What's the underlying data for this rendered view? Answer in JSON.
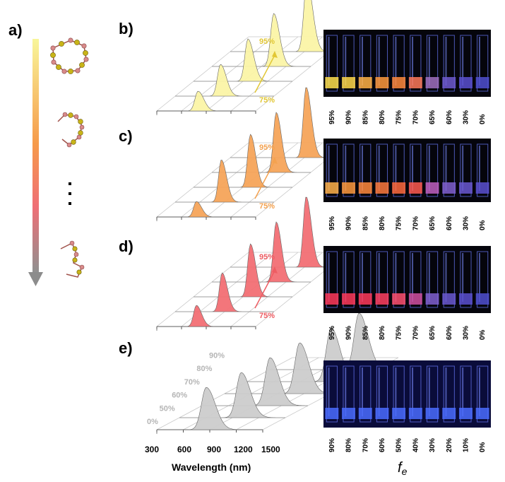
{
  "panels": {
    "a": "a)",
    "b": "b)",
    "c": "c)",
    "d": "d)",
    "e": "e)"
  },
  "spectra": [
    {
      "id": "b",
      "color": "#fbf4a6",
      "label_color": "#e2c735",
      "low_label": "75%",
      "high_label": "95%",
      "peaks_nm": [
        800,
        850,
        960,
        1050,
        1230
      ],
      "heights": [
        0.28,
        0.45,
        0.6,
        0.75,
        1.0
      ]
    },
    {
      "id": "c",
      "color": "#f6a45a",
      "label_color": "#f4a250",
      "low_label": "75%",
      "high_label": "95%",
      "peaks_nm": [
        780,
        860,
        990,
        1080,
        1220
      ],
      "heights": [
        0.22,
        0.6,
        0.75,
        0.85,
        1.0
      ]
    },
    {
      "id": "d",
      "color": "#f26f74",
      "label_color": "#ee5d63",
      "low_label": "75%",
      "high_label": "95%",
      "peaks_nm": [
        780,
        870,
        990,
        1080,
        1220
      ],
      "heights": [
        0.3,
        0.55,
        0.75,
        0.85,
        1.0
      ]
    },
    {
      "id": "e",
      "color": "#cccccc",
      "label_color": "#b5b5b5",
      "curve_labels": [
        "0%",
        "50%",
        "60%",
        "70%",
        "80%",
        "90%"
      ],
      "peaks_nm": [
        860,
        1000,
        1070,
        1150,
        1250,
        1310
      ],
      "heights": [
        0.75,
        0.8,
        0.85,
        0.9,
        0.95,
        1.0
      ]
    }
  ],
  "x_axis": {
    "ticks": [
      "300",
      "600",
      "900",
      "1200",
      "1500"
    ],
    "label": "Wavelength (nm)"
  },
  "photos": [
    {
      "id": "b",
      "labels": [
        "95%",
        "90%",
        "85%",
        "80%",
        "75%",
        "70%",
        "65%",
        "60%",
        "30%",
        "0%"
      ],
      "glow": [
        "#ffe14d",
        "#ffd84a",
        "#ffb347",
        "#ff9a3d",
        "#ff8a3d",
        "#ff7a5a",
        "#a070c0",
        "#6e5ad0",
        "#5a50d0",
        "#5050d0"
      ]
    },
    {
      "id": "c",
      "labels": [
        "95%",
        "90%",
        "85%",
        "80%",
        "75%",
        "70%",
        "65%",
        "60%",
        "30%",
        "0%"
      ],
      "glow": [
        "#ffb14a",
        "#ff9a3d",
        "#ff8a3d",
        "#ff7a3d",
        "#ff6a3d",
        "#ff5a50",
        "#c060c0",
        "#8060d0",
        "#6a58d0",
        "#5a50d0"
      ]
    },
    {
      "id": "d",
      "labels": [
        "95%",
        "90%",
        "85%",
        "80%",
        "75%",
        "70%",
        "65%",
        "60%",
        "30%",
        "0%"
      ],
      "glow": [
        "#ff3a5a",
        "#ff3a5a",
        "#ff3a5a",
        "#ff4060",
        "#ff5070",
        "#d050a0",
        "#8060d0",
        "#6a58d0",
        "#5a50d0",
        "#5050d0"
      ]
    },
    {
      "id": "e",
      "labels": [
        "90%",
        "80%",
        "70%",
        "60%",
        "50%",
        "40%",
        "30%",
        "20%",
        "10%",
        "0%"
      ],
      "glow": [
        "#4a6cff",
        "#4a6cff",
        "#4a6cff",
        "#4a6cff",
        "#4a6cff",
        "#4a6cff",
        "#4a6cff",
        "#4a6cff",
        "#4a6cff",
        "#4a6cff"
      ]
    }
  ],
  "fe_label": {
    "main": "f",
    "sub": "e"
  }
}
